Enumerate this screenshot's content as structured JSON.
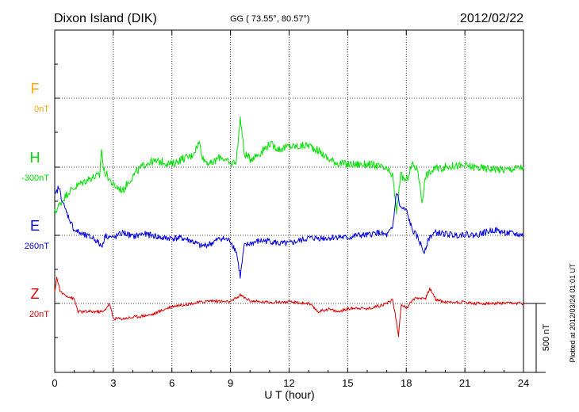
{
  "header": {
    "station": "Dixon Island (DIK)",
    "coords": "GG ( 73.55°,  80.57°)",
    "date": "2012/02/22"
  },
  "footer": {
    "plotted": "Plotted at 2012/03/24 01:01  UT"
  },
  "colors": {
    "F": "#ffa500",
    "H": "#00e000",
    "E": "#0000e0",
    "Z": "#e00000",
    "axis": "#000000"
  },
  "chart_data": {
    "type": "line",
    "title": "",
    "xlabel": "U T (hour)",
    "ylabel": "",
    "xlim": [
      0,
      24
    ],
    "x_ticks": [
      0,
      3,
      6,
      9,
      12,
      15,
      18,
      21,
      24
    ],
    "grid": true,
    "scale_bar": {
      "label": "500 nT",
      "value_nT": 500
    },
    "series": [
      {
        "name": "F",
        "baseline": "0nT",
        "values": []
      },
      {
        "name": "H",
        "baseline": "-300nT",
        "x": [
          0,
          0.3,
          0.7,
          1.2,
          1.8,
          2.3,
          2.4,
          2.5,
          3.0,
          3.5,
          3.7,
          4.2,
          4.7,
          5.0,
          5.5,
          6.0,
          6.5,
          7.0,
          7.4,
          7.6,
          8.0,
          8.5,
          9.0,
          9.3,
          9.5,
          9.7,
          10.0,
          10.5,
          11.0,
          11.5,
          12.0,
          12.5,
          13.0,
          13.5,
          14.0,
          14.5,
          15.0,
          15.5,
          16.0,
          16.5,
          17.0,
          17.3,
          17.5,
          17.7,
          18.0,
          18.3,
          18.6,
          18.8,
          19.0,
          19.5,
          20.0,
          20.5,
          21.0,
          21.5,
          22.0,
          22.5,
          23.0,
          23.5,
          24.0
        ],
        "values": [
          -330,
          -260,
          -180,
          -130,
          -80,
          -60,
          140,
          -20,
          -130,
          -170,
          -120,
          -30,
          30,
          40,
          40,
          20,
          60,
          80,
          180,
          60,
          20,
          80,
          20,
          50,
          360,
          100,
          60,
          100,
          170,
          130,
          150,
          150,
          160,
          120,
          60,
          30,
          20,
          20,
          20,
          10,
          -20,
          -60,
          -330,
          -60,
          -100,
          20,
          -20,
          -250,
          -60,
          -10,
          0,
          10,
          10,
          0,
          -10,
          -10,
          -20,
          -10,
          0
        ]
      },
      {
        "name": "E",
        "baseline": "260nT",
        "x": [
          0,
          0.2,
          0.5,
          1.0,
          1.5,
          2.0,
          2.4,
          2.6,
          3.0,
          3.5,
          4.0,
          4.5,
          5.0,
          5.5,
          6.0,
          6.5,
          7.0,
          7.5,
          8.0,
          8.5,
          9.0,
          9.3,
          9.5,
          9.7,
          10.0,
          10.5,
          11.0,
          11.5,
          12.0,
          12.5,
          13.0,
          13.5,
          14.0,
          14.5,
          15.0,
          15.5,
          16.0,
          16.5,
          17.0,
          17.3,
          17.5,
          17.7,
          18.0,
          18.3,
          18.6,
          18.9,
          19.2,
          19.5,
          20.0,
          20.5,
          21.0,
          21.5,
          22.0,
          22.5,
          23.0,
          23.5,
          24.0
        ],
        "values": [
          280,
          350,
          200,
          40,
          0,
          -20,
          -80,
          0,
          -20,
          20,
          -10,
          10,
          0,
          -20,
          -20,
          -20,
          -40,
          -80,
          -60,
          -20,
          -40,
          -120,
          -300,
          -80,
          -60,
          -40,
          -40,
          -60,
          -60,
          -40,
          -20,
          -20,
          -20,
          -10,
          -20,
          0,
          0,
          20,
          0,
          50,
          320,
          200,
          180,
          40,
          -20,
          -120,
          -10,
          20,
          10,
          0,
          10,
          0,
          20,
          40,
          20,
          10,
          0
        ]
      },
      {
        "name": "Z",
        "baseline": "20nT",
        "x": [
          0,
          0.1,
          0.3,
          1.0,
          1.2,
          2.5,
          2.8,
          3.0,
          3.5,
          4.0,
          5.0,
          5.5,
          6.0,
          7.0,
          8.0,
          9.0,
          9.5,
          10.0,
          10.5,
          11.0,
          12.0,
          13.0,
          13.5,
          14.0,
          14.5,
          15.0,
          15.5,
          16.0,
          16.5,
          17.0,
          17.3,
          17.6,
          17.75,
          18.0,
          18.2,
          18.5,
          19.0,
          19.2,
          19.5,
          20.0,
          20.5,
          21.0,
          21.5,
          22.0,
          22.5,
          23.0,
          23.5,
          24.0
        ],
        "values": [
          80,
          190,
          80,
          30,
          -60,
          -60,
          0,
          -110,
          -110,
          -100,
          -80,
          -50,
          -20,
          0,
          20,
          10,
          60,
          20,
          10,
          10,
          10,
          0,
          -60,
          -40,
          -60,
          -40,
          -30,
          -40,
          -20,
          0,
          30,
          -230,
          0,
          -40,
          10,
          40,
          40,
          110,
          30,
          10,
          10,
          10,
          0,
          0,
          0,
          0,
          0,
          0
        ]
      }
    ]
  }
}
